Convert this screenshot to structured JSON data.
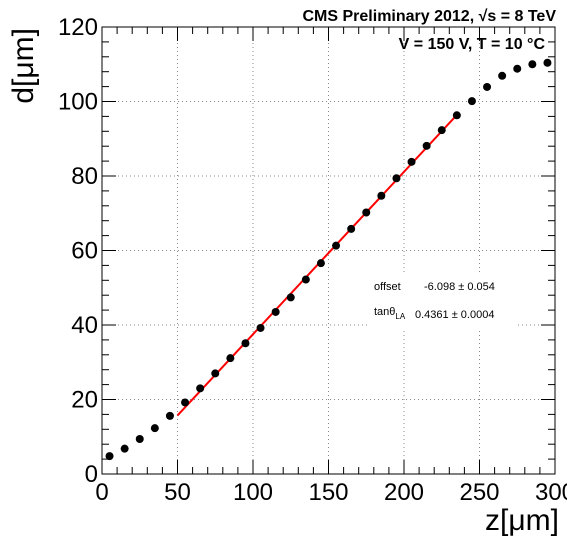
{
  "chart_data": {
    "type": "scatter",
    "header": "CMS Preliminary 2012, √s = 8 TeV",
    "conditions": "V = 150 V, T = 10  °C",
    "xlabel": "z[μm]",
    "ylabel": "d[μm]",
    "xlim": [
      0,
      300
    ],
    "ylim": [
      0,
      120
    ],
    "x_ticks": [
      0,
      50,
      100,
      150,
      200,
      250,
      300
    ],
    "y_ticks": [
      0,
      20,
      40,
      60,
      80,
      100,
      120
    ],
    "grid": true,
    "series": [
      {
        "marker": "circle",
        "color": "#000000",
        "points": [
          [
            5,
            4.8
          ],
          [
            15,
            6.8
          ],
          [
            25,
            9.4
          ],
          [
            35,
            12.3
          ],
          [
            45,
            15.6
          ],
          [
            55,
            19.2
          ],
          [
            65,
            23.0
          ],
          [
            75,
            27.0
          ],
          [
            85,
            31.1
          ],
          [
            95,
            35.1
          ],
          [
            105,
            39.2
          ],
          [
            115,
            43.5
          ],
          [
            125,
            47.4
          ],
          [
            135,
            52.2
          ],
          [
            145,
            56.6
          ],
          [
            155,
            61.3
          ],
          [
            165,
            65.8
          ],
          [
            175,
            70.2
          ],
          [
            185,
            74.7
          ],
          [
            195,
            79.4
          ],
          [
            205,
            83.8
          ],
          [
            215,
            88.1
          ],
          [
            225,
            92.3
          ],
          [
            235,
            96.3
          ],
          [
            245,
            100.1
          ],
          [
            255,
            103.9
          ],
          [
            265,
            106.9
          ],
          [
            275,
            108.8
          ],
          [
            285,
            110.0
          ],
          [
            295,
            110.4
          ]
        ]
      }
    ],
    "fit": {
      "color": "#ff0000",
      "x_range": [
        50,
        235
      ],
      "offset": -6.098,
      "slope": 0.4361
    },
    "stats_box": {
      "row1_label": "offset",
      "row1_value": "-6.098 ± 0.054",
      "row2_label": "tanθ",
      "row2_sub": "LA",
      "row2_value": "0.4361 ± 0.0004"
    }
  }
}
